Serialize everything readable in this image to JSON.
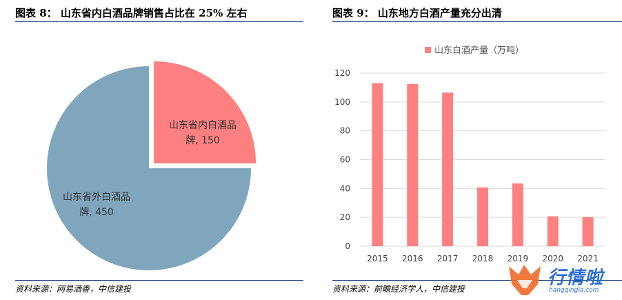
{
  "left": {
    "title": "图表 8：  山东省内白酒品牌销售占比在 25% 左右",
    "source": "资料来源：网易酒香，中信建投"
  },
  "right": {
    "title": "图表 9：  山东地方白酒产量充分出清",
    "source": "资料来源：前瞻经济学人，中信建投"
  },
  "watermark": {
    "text": "行情啦",
    "url": "hangqingla.com"
  },
  "chart_data": [
    {
      "type": "pie",
      "slices": [
        {
          "label": "山东省内白酒品牌, 150",
          "value": 150,
          "color": "#fe8080"
        },
        {
          "label": "山东省外白酒品牌, 450",
          "value": 450,
          "color": "#7fa6bd"
        }
      ],
      "exploded_slice": 0
    },
    {
      "type": "bar",
      "categories": [
        "2015",
        "2016",
        "2017",
        "2018",
        "2019",
        "2020",
        "2021"
      ],
      "series": [
        {
          "name": "山东白酒产量（万吨）",
          "values": [
            113,
            112.5,
            106.5,
            40.8,
            43.5,
            20.7,
            20.2
          ],
          "color": "#fe8080"
        }
      ],
      "ylim": [
        0,
        120
      ],
      "yticks": [
        0,
        20,
        40,
        60,
        80,
        100,
        120
      ],
      "grid": true,
      "legend": "top"
    }
  ]
}
